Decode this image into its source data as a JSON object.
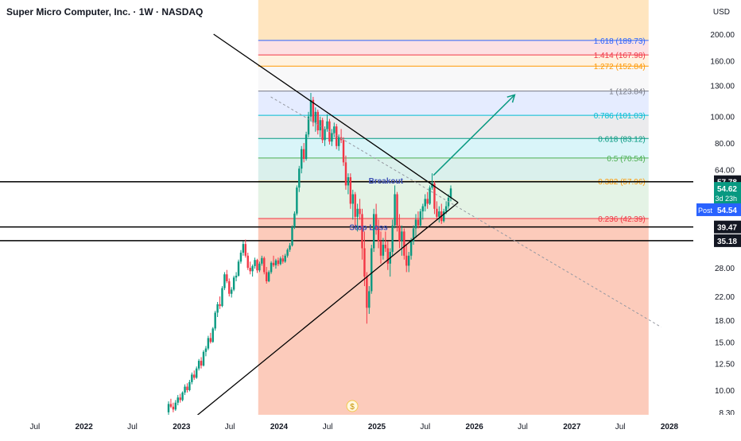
{
  "header": {
    "title": "Super Micro Computer, Inc. · 1W · NASDAQ",
    "currency": "USD"
  },
  "chart_data": {
    "type": "candlestick",
    "symbol": "Super Micro Computer, Inc.",
    "interval": "1W",
    "exchange": "NASDAQ",
    "y_axis": {
      "scale": "log",
      "ticks": [
        "200.00",
        "160.00",
        "130.00",
        "100.00",
        "80.00",
        "64.00",
        "28.00",
        "22.00",
        "18.00",
        "15.00",
        "12.50",
        "10.00",
        "8.30"
      ],
      "tick_values": [
        200,
        160,
        130,
        100,
        80,
        64,
        28,
        22,
        18,
        15,
        12.5,
        10,
        8.3
      ]
    },
    "x_axis": {
      "ticks": [
        "Jul",
        "2022",
        "Jul",
        "2023",
        "Jul",
        "2024",
        "Jul",
        "2025",
        "Jul",
        "2026",
        "Jul",
        "2027",
        "Jul",
        "2028"
      ],
      "tick_dates": [
        "2021-07-01",
        "2022-01-01",
        "2022-07-01",
        "2023-01-01",
        "2023-07-01",
        "2024-01-01",
        "2024-07-01",
        "2025-01-01",
        "2025-07-01",
        "2026-01-01",
        "2026-07-01",
        "2027-01-01",
        "2027-07-01",
        "2028-01-01"
      ]
    },
    "fibonacci": {
      "start_date": "2023-10-15",
      "end_date": "2027-10-15",
      "levels": [
        {
          "ratio": "1.618",
          "price": 189.73,
          "label": "1.618 (189.73)",
          "color": "#2962ff"
        },
        {
          "ratio": "1.414",
          "price": 167.98,
          "label": "1.414 (167.98)",
          "color": "#f23645"
        },
        {
          "ratio": "1.272",
          "price": 152.84,
          "label": "1.272 (152.84)",
          "color": "#ff9800"
        },
        {
          "ratio": "1",
          "price": 123.84,
          "label": "1 (123.84)",
          "color": "#787b86"
        },
        {
          "ratio": "0.786",
          "price": 101.03,
          "label": "0.786 (101.03)",
          "color": "#00bcd4"
        },
        {
          "ratio": "0.618",
          "price": 83.12,
          "label": "0.618 (83.12)",
          "color": "#089981"
        },
        {
          "ratio": "0.5",
          "price": 70.54,
          "label": "0.5 (70.54)",
          "color": "#4caf50"
        },
        {
          "ratio": "0.382",
          "price": 57.96,
          "label": "0.382 (57.96)",
          "color": "#ff9800"
        },
        {
          "ratio": "0.236",
          "price": 42.39,
          "label": "0.236 (42.39)",
          "color": "#f23645"
        },
        {
          "ratio": "0",
          "price": 8.0,
          "label": "",
          "color": "#f23645"
        }
      ]
    },
    "horizontal_levels": [
      {
        "price": 57.78,
        "label": "57.78"
      },
      {
        "price": 39.47,
        "label": "39.47"
      },
      {
        "price": 35.18,
        "label": "35.18"
      }
    ],
    "price_tags": [
      {
        "price": 54.62,
        "label": "54.62",
        "sub": "3d 23h",
        "color": "#089981"
      },
      {
        "price": 50.8,
        "label": "54.54",
        "prefix": "Post",
        "color": "#2962ff"
      }
    ],
    "annotations": [
      {
        "text": "Breakout",
        "date": "2024-12-01",
        "price": 58.5
      },
      {
        "text": "Stop Loss",
        "date": "2024-09-20",
        "price": 39.5
      }
    ],
    "triangle": {
      "upper": [
        {
          "date": "2023-05-01",
          "price": 200
        },
        {
          "date": "2025-11-01",
          "price": 48.5
        }
      ],
      "lower": [
        {
          "date": "2023-03-01",
          "price": 8.1
        },
        {
          "date": "2025-11-01",
          "price": 48.5
        }
      ]
    },
    "trend_dashed": [
      {
        "date": "2023-12-01",
        "price": 118
      },
      {
        "date": "2027-12-01",
        "price": 17
      }
    ],
    "arrow": [
      {
        "date": "2025-08-01",
        "price": 61
      },
      {
        "date": "2026-06-01",
        "price": 120
      }
    ],
    "dividend_marker": {
      "text": "$",
      "date": "2024-10-01"
    },
    "candles": [
      [
        8.3,
        9.1,
        8.0,
        8.9
      ],
      [
        8.9,
        9.3,
        8.6,
        8.7
      ],
      [
        8.7,
        9.0,
        8.3,
        8.5
      ],
      [
        8.5,
        9.2,
        8.4,
        9.0
      ],
      [
        9.0,
        9.6,
        8.8,
        9.4
      ],
      [
        9.4,
        9.7,
        9.0,
        9.2
      ],
      [
        9.2,
        9.9,
        9.1,
        9.8
      ],
      [
        9.8,
        10.5,
        9.6,
        10.3
      ],
      [
        10.3,
        10.6,
        9.8,
        10.0
      ],
      [
        10.0,
        10.9,
        9.9,
        10.7
      ],
      [
        10.7,
        11.6,
        10.5,
        11.4
      ],
      [
        11.4,
        11.8,
        10.9,
        11.1
      ],
      [
        11.1,
        12.2,
        11.0,
        12.0
      ],
      [
        12.0,
        13.0,
        11.8,
        12.8
      ],
      [
        12.8,
        13.2,
        12.0,
        12.3
      ],
      [
        12.3,
        14.0,
        12.2,
        13.8
      ],
      [
        13.8,
        14.5,
        13.3,
        14.2
      ],
      [
        14.2,
        15.8,
        14.0,
        15.5
      ],
      [
        15.5,
        16.2,
        14.8,
        15.0
      ],
      [
        15.0,
        17.0,
        14.9,
        16.8
      ],
      [
        16.8,
        19.5,
        16.5,
        19.2
      ],
      [
        19.2,
        21.0,
        18.5,
        20.6
      ],
      [
        20.6,
        22.0,
        19.8,
        20.3
      ],
      [
        20.3,
        24.0,
        20.1,
        23.6
      ],
      [
        23.6,
        27.0,
        23.2,
        26.5
      ],
      [
        26.5,
        27.5,
        24.6,
        25.0
      ],
      [
        25.0,
        25.6,
        22.0,
        22.5
      ],
      [
        22.5,
        23.8,
        21.8,
        23.3
      ],
      [
        23.3,
        26.2,
        23.0,
        25.8
      ],
      [
        25.8,
        27.0,
        25.0,
        26.2
      ],
      [
        26.2,
        30.0,
        26.0,
        29.5
      ],
      [
        29.5,
        32.5,
        29.0,
        31.8
      ],
      [
        31.8,
        35.0,
        31.0,
        34.2
      ],
      [
        34.2,
        35.5,
        30.5,
        31.0
      ],
      [
        31.0,
        31.8,
        27.5,
        28.0
      ],
      [
        28.0,
        29.5,
        26.5,
        27.2
      ],
      [
        27.2,
        28.8,
        26.0,
        28.4
      ],
      [
        28.4,
        30.5,
        27.8,
        29.9
      ],
      [
        29.9,
        30.2,
        26.8,
        27.4
      ],
      [
        27.4,
        29.5,
        27.0,
        29.0
      ],
      [
        29.0,
        31.0,
        28.5,
        30.4
      ],
      [
        30.4,
        30.8,
        26.5,
        27.0
      ],
      [
        27.0,
        28.2,
        24.5,
        25.0
      ],
      [
        25.0,
        27.4,
        24.8,
        27.0
      ],
      [
        27.0,
        29.6,
        26.6,
        29.2
      ],
      [
        29.2,
        31.0,
        28.2,
        28.6
      ],
      [
        28.6,
        30.2,
        27.8,
        29.8
      ],
      [
        29.8,
        30.5,
        28.4,
        28.9
      ],
      [
        28.9,
        30.8,
        28.6,
        30.3
      ],
      [
        30.3,
        31.2,
        29.0,
        29.5
      ],
      [
        29.5,
        31.5,
        29.2,
        31.0
      ],
      [
        31.0,
        33.0,
        30.5,
        32.6
      ],
      [
        32.6,
        34.5,
        32.0,
        33.8
      ],
      [
        33.8,
        40.0,
        33.5,
        39.5
      ],
      [
        39.5,
        45.0,
        38.8,
        44.2
      ],
      [
        44.2,
        56.0,
        43.5,
        55.0
      ],
      [
        55.0,
        66.0,
        53.0,
        64.5
      ],
      [
        64.5,
        78.0,
        62.0,
        76.0
      ],
      [
        76.0,
        80.0,
        68.0,
        70.0
      ],
      [
        70.0,
        88.0,
        69.0,
        86.0
      ],
      [
        86.0,
        104.0,
        84.0,
        100.0
      ],
      [
        100.0,
        122.0,
        96.0,
        115.0
      ],
      [
        115.0,
        118.0,
        92.0,
        95.0
      ],
      [
        95.0,
        108.0,
        88.0,
        104.0
      ],
      [
        104.0,
        106.0,
        86.0,
        89.0
      ],
      [
        89.0,
        100.0,
        84.0,
        97.0
      ],
      [
        97.0,
        99.0,
        80.0,
        82.0
      ],
      [
        82.0,
        92.0,
        78.0,
        90.0
      ],
      [
        90.0,
        102.0,
        88.0,
        96.0
      ],
      [
        96.0,
        98.0,
        79.0,
        81.0
      ],
      [
        81.0,
        90.0,
        78.0,
        87.0
      ],
      [
        87.0,
        95.0,
        84.0,
        92.0
      ],
      [
        92.0,
        94.0,
        76.0,
        78.0
      ],
      [
        78.0,
        86.0,
        75.0,
        84.0
      ],
      [
        84.0,
        90.0,
        80.0,
        82.0
      ],
      [
        82.0,
        84.0,
        66.0,
        68.0
      ],
      [
        68.0,
        72.0,
        54.0,
        56.0
      ],
      [
        56.0,
        62.0,
        52.0,
        60.0
      ],
      [
        60.0,
        62.0,
        46.0,
        48.0
      ],
      [
        48.0,
        54.0,
        42.0,
        52.0
      ],
      [
        52.0,
        53.0,
        40.0,
        43.0
      ],
      [
        43.0,
        48.0,
        38.0,
        46.0
      ],
      [
        46.0,
        50.0,
        42.0,
        44.0
      ],
      [
        44.0,
        46.0,
        30.0,
        33.0
      ],
      [
        33.0,
        38.0,
        24.0,
        26.0
      ],
      [
        26.0,
        27.0,
        17.5,
        20.0
      ],
      [
        20.0,
        24.0,
        19.0,
        23.0
      ],
      [
        23.0,
        34.0,
        22.5,
        33.0
      ],
      [
        33.0,
        46.0,
        32.0,
        44.0
      ],
      [
        44.0,
        48.0,
        37.0,
        39.0
      ],
      [
        39.0,
        42.0,
        33.0,
        35.0
      ],
      [
        35.0,
        38.0,
        29.0,
        31.0
      ],
      [
        31.0,
        36.0,
        30.0,
        34.0
      ],
      [
        34.0,
        38.0,
        32.0,
        33.0
      ],
      [
        33.0,
        35.0,
        27.5,
        29.0
      ],
      [
        29.0,
        33.0,
        26.0,
        32.0
      ],
      [
        32.0,
        42.0,
        31.0,
        40.0
      ],
      [
        40.0,
        56.0,
        39.0,
        52.0
      ],
      [
        52.0,
        53.0,
        38.0,
        40.0
      ],
      [
        40.0,
        44.0,
        33.0,
        35.0
      ],
      [
        35.0,
        40.0,
        31.0,
        38.0
      ],
      [
        38.0,
        39.0,
        30.0,
        31.0
      ],
      [
        31.0,
        34.0,
        27.0,
        28.5
      ],
      [
        28.5,
        32.0,
        27.0,
        31.0
      ],
      [
        31.0,
        36.0,
        30.0,
        35.0
      ],
      [
        35.0,
        40.0,
        34.0,
        39.0
      ],
      [
        39.0,
        44.0,
        36.0,
        42.0
      ],
      [
        42.0,
        45.0,
        39.0,
        40.0
      ],
      [
        40.0,
        46.0,
        39.5,
        45.0
      ],
      [
        45.0,
        48.0,
        42.0,
        47.0
      ],
      [
        47.0,
        52.0,
        45.0,
        50.0
      ],
      [
        50.0,
        53.0,
        46.0,
        48.0
      ],
      [
        48.0,
        56.0,
        47.5,
        55.0
      ],
      [
        55.0,
        62.0,
        54.0,
        57.0
      ],
      [
        57.0,
        58.0,
        44.0,
        46.0
      ],
      [
        46.0,
        49.0,
        42.0,
        43.0
      ],
      [
        43.0,
        47.0,
        41.0,
        45.0
      ],
      [
        45.0,
        48.0,
        40.5,
        41.5
      ],
      [
        41.5,
        46.0,
        41.0,
        45.0
      ],
      [
        45.0,
        49.0,
        44.0,
        47.0
      ],
      [
        47.0,
        52.0,
        46.0,
        50.5
      ],
      [
        50.5,
        56.0,
        49.0,
        54.6
      ]
    ]
  }
}
